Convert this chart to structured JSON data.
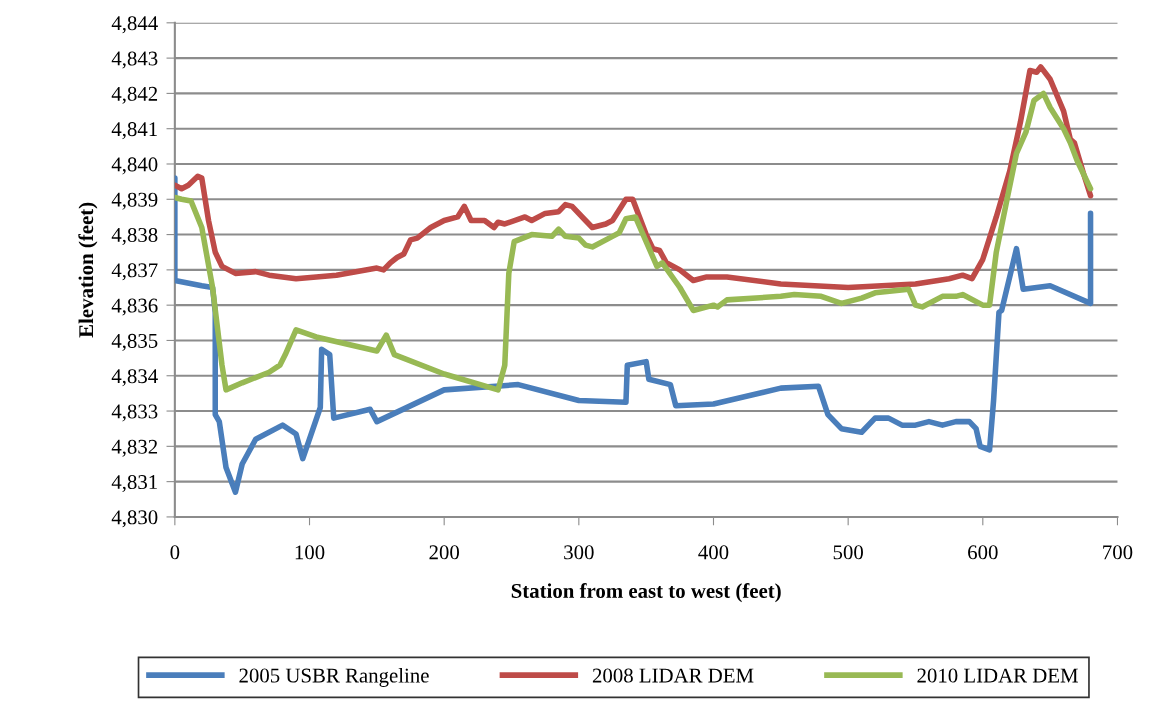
{
  "chart_data": {
    "type": "line",
    "xlabel": "Station from east to west (feet)",
    "ylabel": "Elevation (feet)",
    "xlim": [
      0,
      700
    ],
    "xticks": [
      0,
      100,
      200,
      300,
      400,
      500,
      600,
      700
    ],
    "ylim": [
      4830,
      4844
    ],
    "yticks": [
      {
        "value": 4830,
        "label": "4,830"
      },
      {
        "value": 4831,
        "label": "4,831"
      },
      {
        "value": 4832,
        "label": "4,832"
      },
      {
        "value": 4833,
        "label": "4,833"
      },
      {
        "value": 4834,
        "label": "4,834"
      },
      {
        "value": 4835,
        "label": "4,835"
      },
      {
        "value": 4836,
        "label": "4,836"
      },
      {
        "value": 4837,
        "label": "4,837"
      },
      {
        "value": 4838,
        "label": "4,838"
      },
      {
        "value": 4839,
        "label": "4,839"
      },
      {
        "value": 4840,
        "label": "4,840"
      },
      {
        "value": 4841,
        "label": "4,841"
      },
      {
        "value": 4842,
        "label": "4,842"
      },
      {
        "value": 4843,
        "label": "4,843"
      },
      {
        "value": 4844,
        "label": "4,844"
      }
    ],
    "grid": "y",
    "legend": "bottom",
    "marker": "none",
    "line_style": "solid",
    "series": [
      {
        "name": "2005 USBR Rangeline",
        "color": "#4a7ebb",
        "x": [
          0,
          0,
          20,
          28,
          30,
          30,
          33,
          38,
          45,
          50,
          60,
          80,
          90,
          95,
          108,
          109,
          115,
          118,
          145,
          150,
          200,
          255,
          300,
          335,
          336,
          350,
          352,
          368,
          372,
          400,
          450,
          478,
          485,
          495,
          510,
          520,
          530,
          540,
          550,
          560,
          570,
          580,
          590,
          595,
          598,
          605,
          608,
          612,
          614,
          625,
          630,
          650,
          680,
          680
        ],
        "values": [
          4839.6,
          4836.7,
          4836.55,
          4836.5,
          4835.8,
          4832.9,
          4832.7,
          4831.4,
          4830.7,
          4831.5,
          4832.2,
          4832.6,
          4832.35,
          4831.65,
          4833.1,
          4834.75,
          4834.6,
          4832.8,
          4833.05,
          4832.7,
          4833.6,
          4833.75,
          4833.3,
          4833.25,
          4834.3,
          4834.4,
          4833.9,
          4833.75,
          4833.15,
          4833.2,
          4833.65,
          4833.7,
          4832.9,
          4832.5,
          4832.4,
          4832.8,
          4832.8,
          4832.6,
          4832.6,
          4832.7,
          4832.6,
          4832.7,
          4832.7,
          4832.5,
          4832.0,
          4831.9,
          4833.3,
          4835.8,
          4835.85,
          4837.6,
          4836.45,
          4836.55,
          4836.05,
          4838.6
        ]
      },
      {
        "name": "2008 LIDAR DEM",
        "color": "#be4b48",
        "x": [
          0,
          5,
          10,
          17,
          20,
          25,
          30,
          35,
          45,
          60,
          70,
          90,
          120,
          150,
          155,
          160,
          165,
          170,
          175,
          180,
          190,
          200,
          210,
          215,
          220,
          230,
          237,
          240,
          245,
          260,
          265,
          275,
          285,
          290,
          295,
          305,
          310,
          320,
          325,
          335,
          340,
          350,
          355,
          360,
          365,
          375,
          385,
          395,
          410,
          450,
          500,
          550,
          575,
          585,
          592,
          600,
          610,
          620,
          628,
          635,
          640,
          643,
          650,
          660,
          665,
          668,
          675,
          680
        ],
        "values": [
          4839.4,
          4839.3,
          4839.4,
          4839.65,
          4839.6,
          4838.4,
          4837.5,
          4837.1,
          4836.9,
          4836.95,
          4836.85,
          4836.75,
          4836.85,
          4837.05,
          4837.0,
          4837.2,
          4837.35,
          4837.45,
          4837.85,
          4837.9,
          4838.2,
          4838.4,
          4838.5,
          4838.8,
          4838.4,
          4838.4,
          4838.2,
          4838.35,
          4838.3,
          4838.5,
          4838.4,
          4838.6,
          4838.65,
          4838.85,
          4838.8,
          4838.4,
          4838.2,
          4838.3,
          4838.4,
          4839.0,
          4839.0,
          4838.0,
          4837.6,
          4837.55,
          4837.2,
          4837.0,
          4836.7,
          4836.8,
          4836.8,
          4836.6,
          4836.5,
          4836.6,
          4836.75,
          4836.85,
          4836.75,
          4837.3,
          4838.5,
          4839.8,
          4841.2,
          4842.65,
          4842.6,
          4842.75,
          4842.4,
          4841.5,
          4840.7,
          4840.6,
          4839.7,
          4839.1
        ]
      },
      {
        "name": "2010 LIDAR DEM",
        "color": "#98b954",
        "x": [
          0,
          5,
          12,
          20,
          28,
          35,
          38,
          50,
          70,
          78,
          82,
          90,
          105,
          150,
          157,
          163,
          200,
          240,
          245,
          248,
          252,
          265,
          280,
          285,
          290,
          300,
          305,
          310,
          325,
          330,
          335,
          342,
          350,
          358,
          362,
          375,
          385,
          400,
          403,
          410,
          450,
          460,
          480,
          495,
          510,
          520,
          545,
          550,
          555,
          570,
          580,
          585,
          600,
          605,
          610,
          618,
          625,
          632,
          638,
          645,
          650,
          660,
          665,
          670,
          680
        ],
        "values": [
          4839.05,
          4839.0,
          4838.95,
          4838.2,
          4836.5,
          4834.3,
          4833.6,
          4833.8,
          4834.1,
          4834.3,
          4834.6,
          4835.3,
          4835.1,
          4834.7,
          4835.15,
          4834.6,
          4834.05,
          4833.6,
          4834.3,
          4836.9,
          4837.8,
          4838.0,
          4837.95,
          4838.15,
          4837.95,
          4837.9,
          4837.7,
          4837.65,
          4837.95,
          4838.05,
          4838.45,
          4838.5,
          4837.8,
          4837.1,
          4837.2,
          4836.5,
          4835.85,
          4836.0,
          4835.95,
          4836.15,
          4836.25,
          4836.3,
          4836.25,
          4836.05,
          4836.2,
          4836.35,
          4836.45,
          4836.0,
          4835.95,
          4836.25,
          4836.25,
          4836.3,
          4836.0,
          4836.0,
          4837.5,
          4839.0,
          4840.3,
          4840.9,
          4841.8,
          4842.0,
          4841.6,
          4841.0,
          4840.6,
          4840.1,
          4839.3
        ]
      }
    ]
  }
}
